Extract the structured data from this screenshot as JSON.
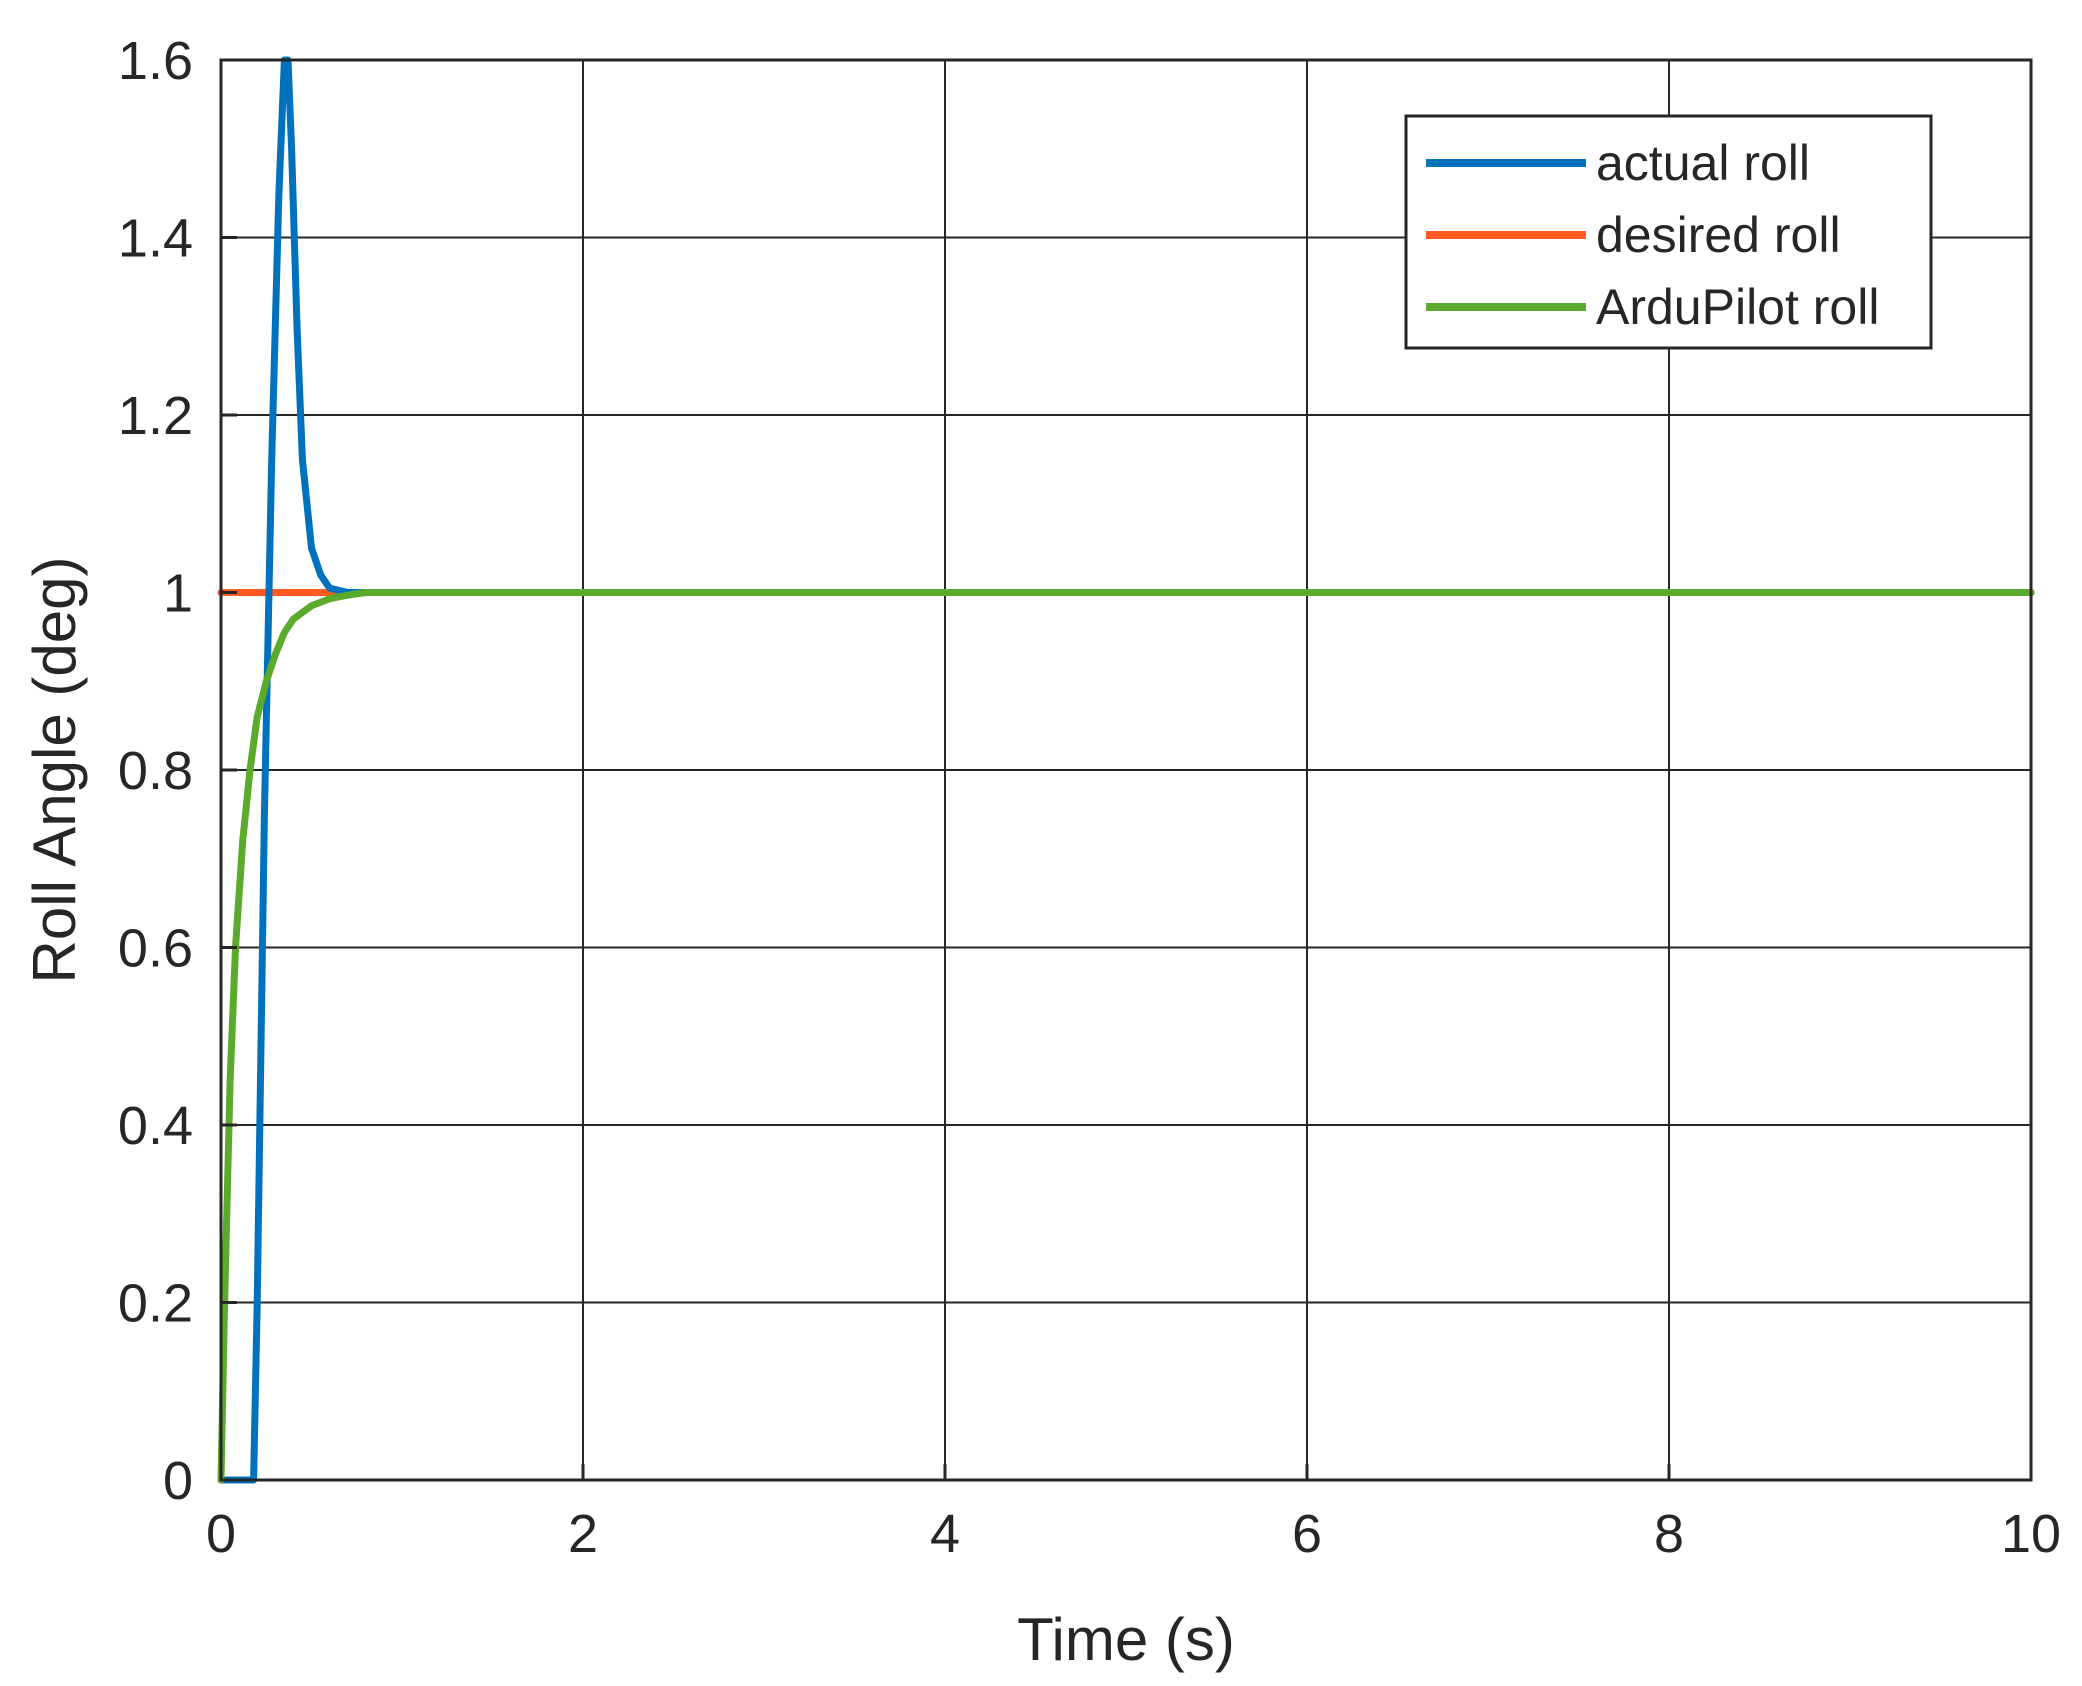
{
  "chart_data": {
    "type": "line",
    "title": "",
    "xlabel": "Time (s)",
    "ylabel": "Roll Angle (deg)",
    "xlim": [
      0,
      10
    ],
    "ylim": [
      0,
      1.6
    ],
    "xticks": [
      0,
      2,
      4,
      6,
      8,
      10
    ],
    "yticks": [
      0,
      0.2,
      0.4,
      0.6,
      0.8,
      1,
      1.2,
      1.4,
      1.6
    ],
    "xtick_labels": [
      "0",
      "2",
      "4",
      "6",
      "8",
      "10"
    ],
    "ytick_labels": [
      "0",
      "0.2",
      "0.4",
      "0.6",
      "0.8",
      "1",
      "1.2",
      "1.4",
      "1.6"
    ],
    "grid": true,
    "legend_position": "top-right",
    "series": [
      {
        "name": "actual roll",
        "color": "#0072BD",
        "x": [
          0,
          0.18,
          0.2,
          0.24,
          0.28,
          0.32,
          0.35,
          0.37,
          0.39,
          0.42,
          0.45,
          0.5,
          0.55,
          0.6,
          0.7,
          0.8,
          1.0,
          10
        ],
        "y": [
          0,
          0,
          0.2,
          0.75,
          1.15,
          1.45,
          1.6,
          1.6,
          1.5,
          1.3,
          1.15,
          1.05,
          1.02,
          1.005,
          1.0,
          1.0,
          1.0,
          1.0
        ]
      },
      {
        "name": "desired roll",
        "color": "#FF5A1F",
        "x": [
          0,
          10
        ],
        "y": [
          1,
          1
        ]
      },
      {
        "name": "ArduPilot roll",
        "color": "#5BAA2B",
        "x": [
          0,
          0.02,
          0.05,
          0.08,
          0.12,
          0.16,
          0.2,
          0.25,
          0.3,
          0.35,
          0.4,
          0.5,
          0.6,
          0.7,
          0.8,
          1.0,
          1.2,
          10
        ],
        "y": [
          0,
          0.2,
          0.45,
          0.6,
          0.72,
          0.8,
          0.86,
          0.9,
          0.93,
          0.955,
          0.97,
          0.985,
          0.993,
          0.997,
          1.0,
          1.0,
          1.0,
          1.0
        ]
      }
    ]
  }
}
